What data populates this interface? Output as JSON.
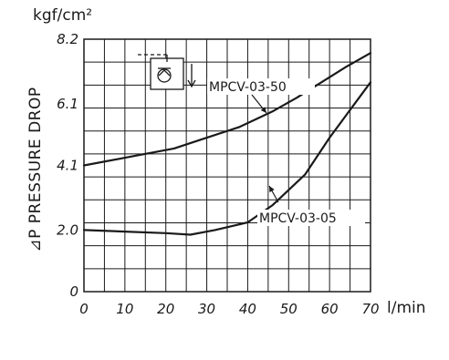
{
  "chart_data": {
    "type": "line",
    "ylabel": "⊿P PRESSURE DROP",
    "y_unit": "kgf/cm²",
    "x_unit": "l/min",
    "xlim": [
      0,
      70
    ],
    "ylim": [
      0,
      8.2
    ],
    "x_ticks": [
      "0",
      "10",
      "20",
      "30",
      "40",
      "50",
      "60",
      "70"
    ],
    "y_ticks": [
      "0",
      "2.0",
      "4.1",
      "6.1",
      "8.2"
    ],
    "grid": true,
    "series": [
      {
        "name": "MPCV-03-50",
        "points": [
          [
            0,
            4.1
          ],
          [
            10,
            4.35
          ],
          [
            22,
            4.65
          ],
          [
            30,
            5.0
          ],
          [
            38,
            5.35
          ],
          [
            46,
            5.85
          ],
          [
            52,
            6.3
          ],
          [
            58,
            6.8
          ],
          [
            64,
            7.3
          ],
          [
            70,
            7.75
          ]
        ]
      },
      {
        "name": "MPCV-03-05",
        "points": [
          [
            0,
            2.0
          ],
          [
            10,
            1.95
          ],
          [
            20,
            1.9
          ],
          [
            26,
            1.85
          ],
          [
            32,
            2.0
          ],
          [
            40,
            2.25
          ],
          [
            46,
            2.8
          ],
          [
            54,
            3.8
          ],
          [
            60,
            5.0
          ],
          [
            70,
            6.8
          ]
        ]
      }
    ]
  }
}
